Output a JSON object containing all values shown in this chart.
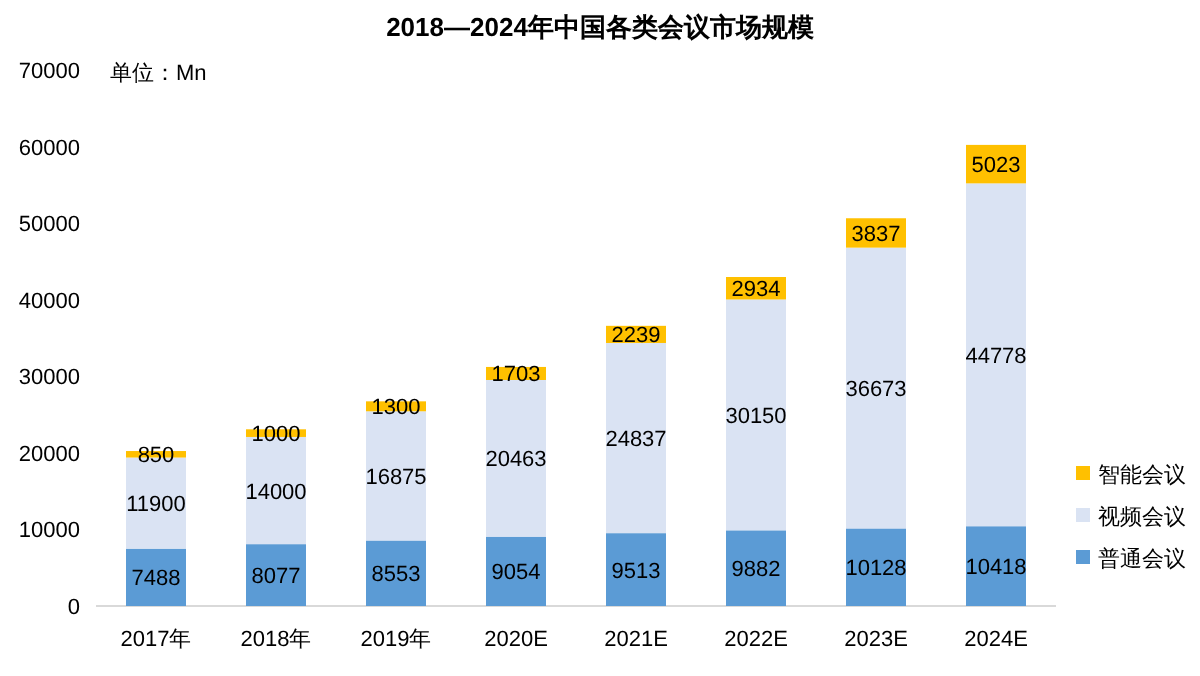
{
  "chart_data": {
    "type": "bar",
    "title": "2018—2024年中国各类会议市场规模",
    "annotations": [
      "单位：Mn"
    ],
    "categories": [
      "2017年",
      "2018年",
      "2019年",
      "2020E",
      "2021E",
      "2022E",
      "2023E",
      "2024E"
    ],
    "stacked": true,
    "data_labels": true,
    "legend": "right",
    "ylim": [
      0,
      70000
    ],
    "yticks": [
      0,
      10000,
      20000,
      30000,
      40000,
      50000,
      60000,
      70000
    ],
    "series": [
      {
        "name": "普通会议",
        "color": "#5b9bd5",
        "values": [
          7488,
          8077,
          8553,
          9054,
          9513,
          9882,
          10128,
          10418
        ]
      },
      {
        "name": "视频会议",
        "color": "#dae3f3",
        "values": [
          11900,
          14000,
          16875,
          20463,
          24837,
          30150,
          36673,
          44778
        ]
      },
      {
        "name": "智能会议",
        "color": "#ffc000",
        "values": [
          850,
          1000,
          1300,
          1703,
          2239,
          2934,
          3837,
          5023
        ]
      }
    ]
  }
}
